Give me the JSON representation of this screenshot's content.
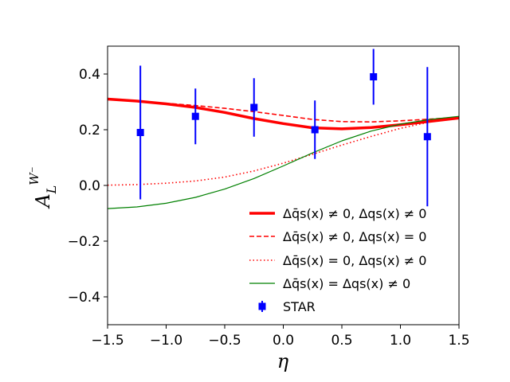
{
  "chart_data": {
    "type": "line",
    "title": "",
    "xlabel": "η",
    "ylabel": "A_L^{W⁻}",
    "ylabel_main": "A",
    "ylabel_sub": "L",
    "ylabel_sup": "W⁻",
    "xlim": [
      -1.5,
      1.5
    ],
    "ylim": [
      -0.5,
      0.5
    ],
    "xticks": [
      -1.5,
      -1.0,
      -0.5,
      0.0,
      0.5,
      1.0,
      1.5
    ],
    "xtick_labels": [
      "−1.5",
      "−1.0",
      "−0.5",
      "0.0",
      "0.5",
      "1.0",
      "1.5"
    ],
    "yticks": [
      -0.4,
      -0.2,
      0.0,
      0.2,
      0.4
    ],
    "ytick_labels": [
      "−0.4",
      "−0.2",
      "0.0",
      "0.2",
      "0.4"
    ],
    "grid": false,
    "legend_position": "lower-right",
    "series": [
      {
        "name": "Δq̄s(x) ≠ 0, Δqs(x) ≠ 0",
        "color": "#ff0000",
        "style": "solid-thick",
        "x": [
          -1.5,
          -1.25,
          -1.0,
          -0.75,
          -0.5,
          -0.25,
          0.0,
          0.25,
          0.5,
          0.75,
          1.0,
          1.25,
          1.5
        ],
        "y": [
          0.31,
          0.303,
          0.293,
          0.28,
          0.262,
          0.24,
          0.222,
          0.207,
          0.203,
          0.208,
          0.218,
          0.23,
          0.242
        ]
      },
      {
        "name": "Δq̄s(x) ≠ 0, Δqs(x) = 0",
        "color": "#ff0000",
        "style": "dashed",
        "x": [
          -1.5,
          -1.25,
          -1.0,
          -0.75,
          -0.5,
          -0.25,
          0.0,
          0.25,
          0.5,
          0.75,
          1.0,
          1.25,
          1.5
        ],
        "y": [
          0.31,
          0.303,
          0.295,
          0.287,
          0.277,
          0.265,
          0.251,
          0.237,
          0.229,
          0.228,
          0.232,
          0.238,
          0.245
        ]
      },
      {
        "name": "Δq̄s(x) = 0, Δqs(x) ≠ 0",
        "color": "#ff0000",
        "style": "dotted",
        "x": [
          -1.5,
          -1.25,
          -1.0,
          -0.75,
          -0.5,
          -0.25,
          0.0,
          0.25,
          0.5,
          0.75,
          1.0,
          1.25,
          1.5
        ],
        "y": [
          0.001,
          0.003,
          0.008,
          0.016,
          0.03,
          0.052,
          0.08,
          0.112,
          0.145,
          0.176,
          0.205,
          0.228,
          0.245
        ]
      },
      {
        "name": "Δq̄s(x) = Δqs(x) ≠ 0",
        "color": "#008000",
        "style": "solid-thin",
        "x": [
          -1.5,
          -1.25,
          -1.0,
          -0.75,
          -0.5,
          -0.25,
          0.0,
          0.25,
          0.5,
          0.75,
          1.0,
          1.25,
          1.5
        ],
        "y": [
          -0.083,
          -0.077,
          -0.064,
          -0.043,
          -0.013,
          0.025,
          0.07,
          0.117,
          0.16,
          0.195,
          0.22,
          0.237,
          0.248
        ]
      }
    ],
    "points": {
      "name": "STAR",
      "color": "#0000ff",
      "x": [
        -1.22,
        -0.75,
        -0.25,
        0.27,
        0.77,
        1.23
      ],
      "y": [
        0.19,
        0.248,
        0.28,
        0.2,
        0.39,
        0.175
      ],
      "err": [
        0.24,
        0.1,
        0.105,
        0.105,
        0.1,
        0.25
      ]
    }
  }
}
